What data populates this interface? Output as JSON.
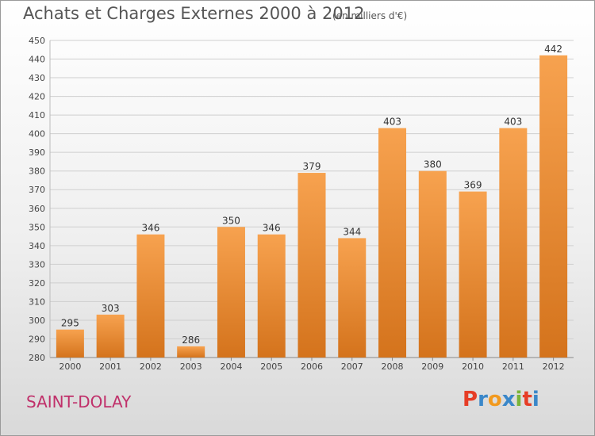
{
  "header": {
    "title": "Achats et Charges Externes 2000 à 2012",
    "subtitle": "(en milliers d'€)"
  },
  "footer": {
    "town": "SAINT-DOLAY",
    "logo": "Proxiti",
    "logo_colors": [
      "#e63d26",
      "#3a87c9",
      "#f29a1f",
      "#3a87c9",
      "#7ab43a",
      "#e63d26",
      "#3a87c9"
    ]
  },
  "chart_data": {
    "type": "bar",
    "title": "Achats et Charges Externes 2000 à 2012",
    "subtitle": "(en milliers d'€)",
    "categories": [
      "2000",
      "2001",
      "2002",
      "2003",
      "2004",
      "2005",
      "2006",
      "2007",
      "2008",
      "2009",
      "2010",
      "2011",
      "2012"
    ],
    "values": [
      295,
      303,
      346,
      286,
      350,
      346,
      379,
      344,
      403,
      380,
      369,
      403,
      442
    ],
    "ylim": [
      280,
      450
    ],
    "ytick_step": 10,
    "grid": true,
    "legend": "none",
    "bar_color_light": "#f7a24f",
    "bar_color_dark": "#d4731c"
  }
}
